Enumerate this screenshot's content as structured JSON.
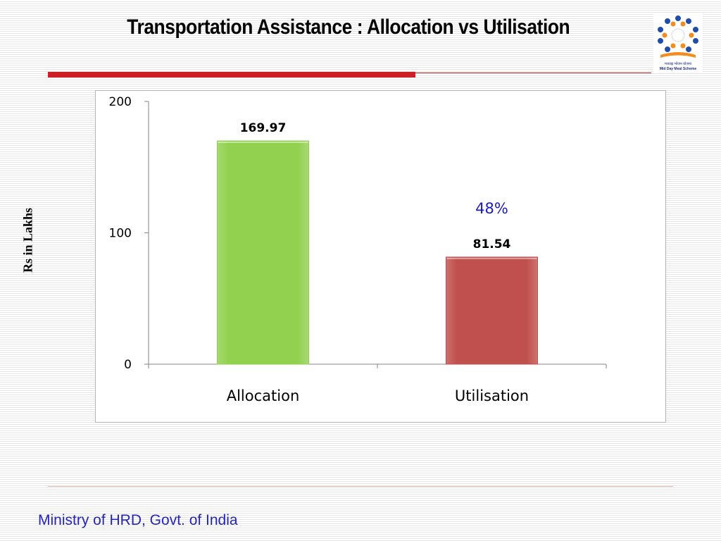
{
  "slide": {
    "title": "Transportation Assistance : Allocation vs Utilisation",
    "footer": "Ministry of HRD, Govt. of India",
    "logo_caption_hindi": "मध्याह्न भोजन योजना",
    "logo_caption": "Mid Day Meal Scheme"
  },
  "chart_data": {
    "type": "bar",
    "categories": [
      "Allocation",
      "Utilisation"
    ],
    "values": [
      169.97,
      81.54
    ],
    "data_labels": [
      "169.97",
      "81.54"
    ],
    "bar_colors": [
      "#92d050",
      "#c0504d"
    ],
    "ylabel": "Rs in Lakhs",
    "ylim": [
      0,
      200
    ],
    "yticks": [
      0,
      100,
      200
    ],
    "annotation": "48%",
    "annotation_color": "#1c1cc0",
    "grid": false,
    "legend": "none"
  }
}
